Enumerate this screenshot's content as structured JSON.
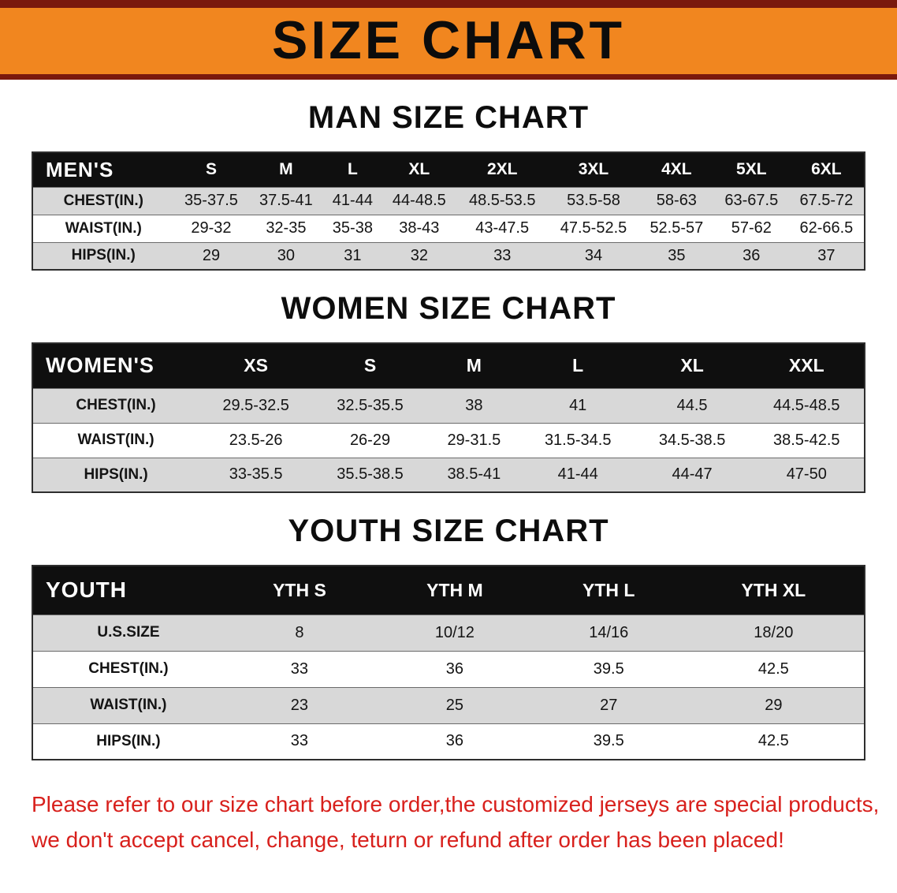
{
  "banner": {
    "title": "SIZE CHART"
  },
  "colors": {
    "banner_bg": "#f1861f",
    "banner_stripe": "#7a190d",
    "table_header_bg": "#0f0f0f",
    "row_alt_gray": "#d8d8d8",
    "footer_red": "#d8201c"
  },
  "men": {
    "heading": "MAN SIZE CHART",
    "table": {
      "label": "MEN'S",
      "columns": [
        "S",
        "M",
        "L",
        "XL",
        "2XL",
        "3XL",
        "4XL",
        "5XL",
        "6XL"
      ],
      "rows": [
        {
          "label": "CHEST(IN.)",
          "values": [
            "35-37.5",
            "37.5-41",
            "41-44",
            "44-48.5",
            "48.5-53.5",
            "53.5-58",
            "58-63",
            "63-67.5",
            "67.5-72"
          ]
        },
        {
          "label": "WAIST(IN.)",
          "values": [
            "29-32",
            "32-35",
            "35-38",
            "38-43",
            "43-47.5",
            "47.5-52.5",
            "52.5-57",
            "57-62",
            "62-66.5"
          ]
        },
        {
          "label": "HIPS(IN.)",
          "values": [
            "29",
            "30",
            "31",
            "32",
            "33",
            "34",
            "35",
            "36",
            "37"
          ]
        }
      ]
    }
  },
  "women": {
    "heading": "WOMEN SIZE CHART",
    "table": {
      "label": "WOMEN'S",
      "columns": [
        "XS",
        "S",
        "M",
        "L",
        "XL",
        "XXL"
      ],
      "rows": [
        {
          "label": "CHEST(IN.)",
          "values": [
            "29.5-32.5",
            "32.5-35.5",
            "38",
            "41",
            "44.5",
            "44.5-48.5"
          ]
        },
        {
          "label": "WAIST(IN.)",
          "values": [
            "23.5-26",
            "26-29",
            "29-31.5",
            "31.5-34.5",
            "34.5-38.5",
            "38.5-42.5"
          ]
        },
        {
          "label": "HIPS(IN.)",
          "values": [
            "33-35.5",
            "35.5-38.5",
            "38.5-41",
            "41-44",
            "44-47",
            "47-50"
          ]
        }
      ]
    }
  },
  "youth": {
    "heading": "YOUTH SIZE CHART",
    "table": {
      "label": "YOUTH",
      "columns": [
        "YTH S",
        "YTH M",
        "YTH L",
        "YTH XL"
      ],
      "rows": [
        {
          "label": "U.S.SIZE",
          "values": [
            "8",
            "10/12",
            "14/16",
            "18/20"
          ]
        },
        {
          "label": "CHEST(IN.)",
          "values": [
            "33",
            "36",
            "39.5",
            "42.5"
          ]
        },
        {
          "label": "WAIST(IN.)",
          "values": [
            "23",
            "25",
            "27",
            "29"
          ]
        },
        {
          "label": "HIPS(IN.)",
          "values": [
            "33",
            "36",
            "39.5",
            "42.5"
          ]
        }
      ]
    }
  },
  "footer": {
    "line1": "Please refer to our size chart before order,the customized jerseys are special products,",
    "line2": "we don't accept cancel, change, teturn or refund after order has been placed!"
  }
}
